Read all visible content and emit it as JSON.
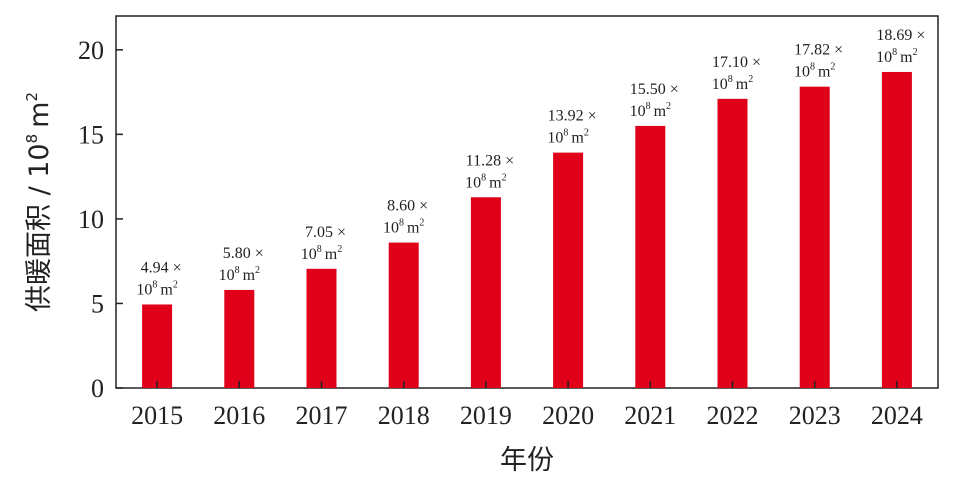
{
  "chart_data": {
    "type": "bar",
    "categories": [
      "2015",
      "2016",
      "2017",
      "2018",
      "2019",
      "2020",
      "2021",
      "2022",
      "2023",
      "2024"
    ],
    "values": [
      4.94,
      5.8,
      7.05,
      8.6,
      11.28,
      13.92,
      15.5,
      17.1,
      17.82,
      18.69
    ],
    "data_labels": [
      "4.94 ×",
      "5.80 ×",
      "7.05 ×",
      "8.60 ×",
      "11.28 ×",
      "13.92 ×",
      "15.50 ×",
      "17.10 ×",
      "17.82 ×",
      "18.69 ×"
    ],
    "label_unit": {
      "base": "10",
      "exp": "8",
      "unit": "m",
      "unit_exp": "2"
    },
    "ylim": [
      0,
      22
    ],
    "yticks": [
      0,
      5,
      10,
      15,
      20
    ],
    "xlabel": "年份",
    "ylabel": "供暖面积 / 10",
    "ylabel_exp": "8",
    "ylabel_unit": "m",
    "ylabel_unit_exp": "2",
    "bar_color": "#e0001a",
    "title": ""
  }
}
